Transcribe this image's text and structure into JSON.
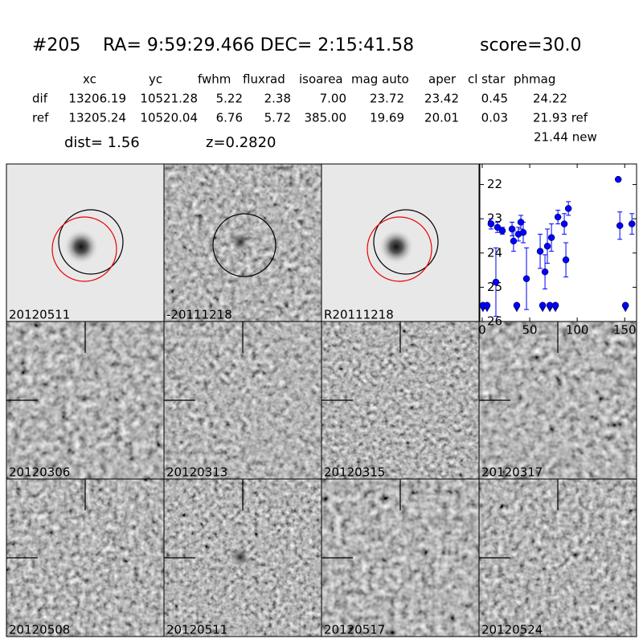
{
  "header": {
    "id": "#205",
    "coords": "RA= 9:59:29.466 DEC= 2:15:41.58",
    "score": "score=30.0"
  },
  "table": {
    "columns": [
      "xc",
      "yc",
      "fwhm",
      "fluxrad",
      "isoarea",
      "mag auto",
      "aper",
      "cl star",
      "phmag"
    ],
    "rows": [
      {
        "label": "dif",
        "cells": [
          "13206.19",
          "10521.28",
          "5.22",
          "2.38",
          "7.00",
          "23.72",
          "23.42",
          "0.45",
          "24.22"
        ]
      },
      {
        "label": "ref",
        "cells": [
          "13205.24",
          "10520.04",
          "6.76",
          "5.72",
          "385.00",
          "19.69",
          "20.01",
          "0.03",
          "21.93 ref"
        ]
      }
    ],
    "extra": "21.44 new"
  },
  "dist": "dist=  1.56",
  "z": "z=0.2820",
  "panels": [
    {
      "label": "20120511"
    },
    {
      "label": "-20111218"
    },
    {
      "label": "R20111218"
    },
    {
      "label": "20120306"
    },
    {
      "label": "20120313"
    },
    {
      "label": "20120315"
    },
    {
      "label": "20120317"
    },
    {
      "label": "20120508"
    },
    {
      "label": "20120511",
      "color": "#ff0000"
    },
    {
      "label": "20120517"
    },
    {
      "label": "20120524"
    }
  ],
  "chart_data": {
    "type": "scatter",
    "color": "#0000ff",
    "xlim": [
      -2.5,
      162.5
    ],
    "ylim": [
      26,
      21.4
    ],
    "xticks": [
      0,
      50,
      100,
      150
    ],
    "yticks": [
      22,
      23,
      24,
      25,
      26
    ],
    "points": {
      "x": [
        9.3,
        14.4,
        16.1,
        21.2,
        31.4,
        33,
        38.1,
        40.7,
        43.2,
        46.6,
        61,
        66.1,
        68.6,
        72.9,
        79.7,
        86.4,
        88.1,
        90.7,
        143.2,
        144.9,
        157.6
      ],
      "y": [
        23.15,
        24.85,
        23.25,
        23.35,
        23.3,
        23.65,
        23.45,
        23.1,
        23.4,
        24.75,
        23.95,
        24.55,
        23.8,
        23.55,
        22.95,
        23.15,
        24.2,
        22.7,
        21.85,
        23.2,
        23.15
      ],
      "err": [
        0.15,
        1.0,
        0.15,
        0.1,
        0.2,
        0.3,
        0.2,
        0.2,
        0.3,
        0.9,
        0.5,
        0.5,
        0.5,
        0.4,
        0.2,
        0.3,
        0.5,
        0.2,
        0.05,
        0.4,
        0.3
      ]
    },
    "upper_limits": {
      "x": [
        0.8,
        5.1,
        36.4,
        63.6,
        71.2,
        77.1,
        150.8
      ],
      "y": [
        25.55,
        25.55,
        25.55,
        25.55,
        25.55,
        25.55,
        25.55
      ]
    }
  }
}
